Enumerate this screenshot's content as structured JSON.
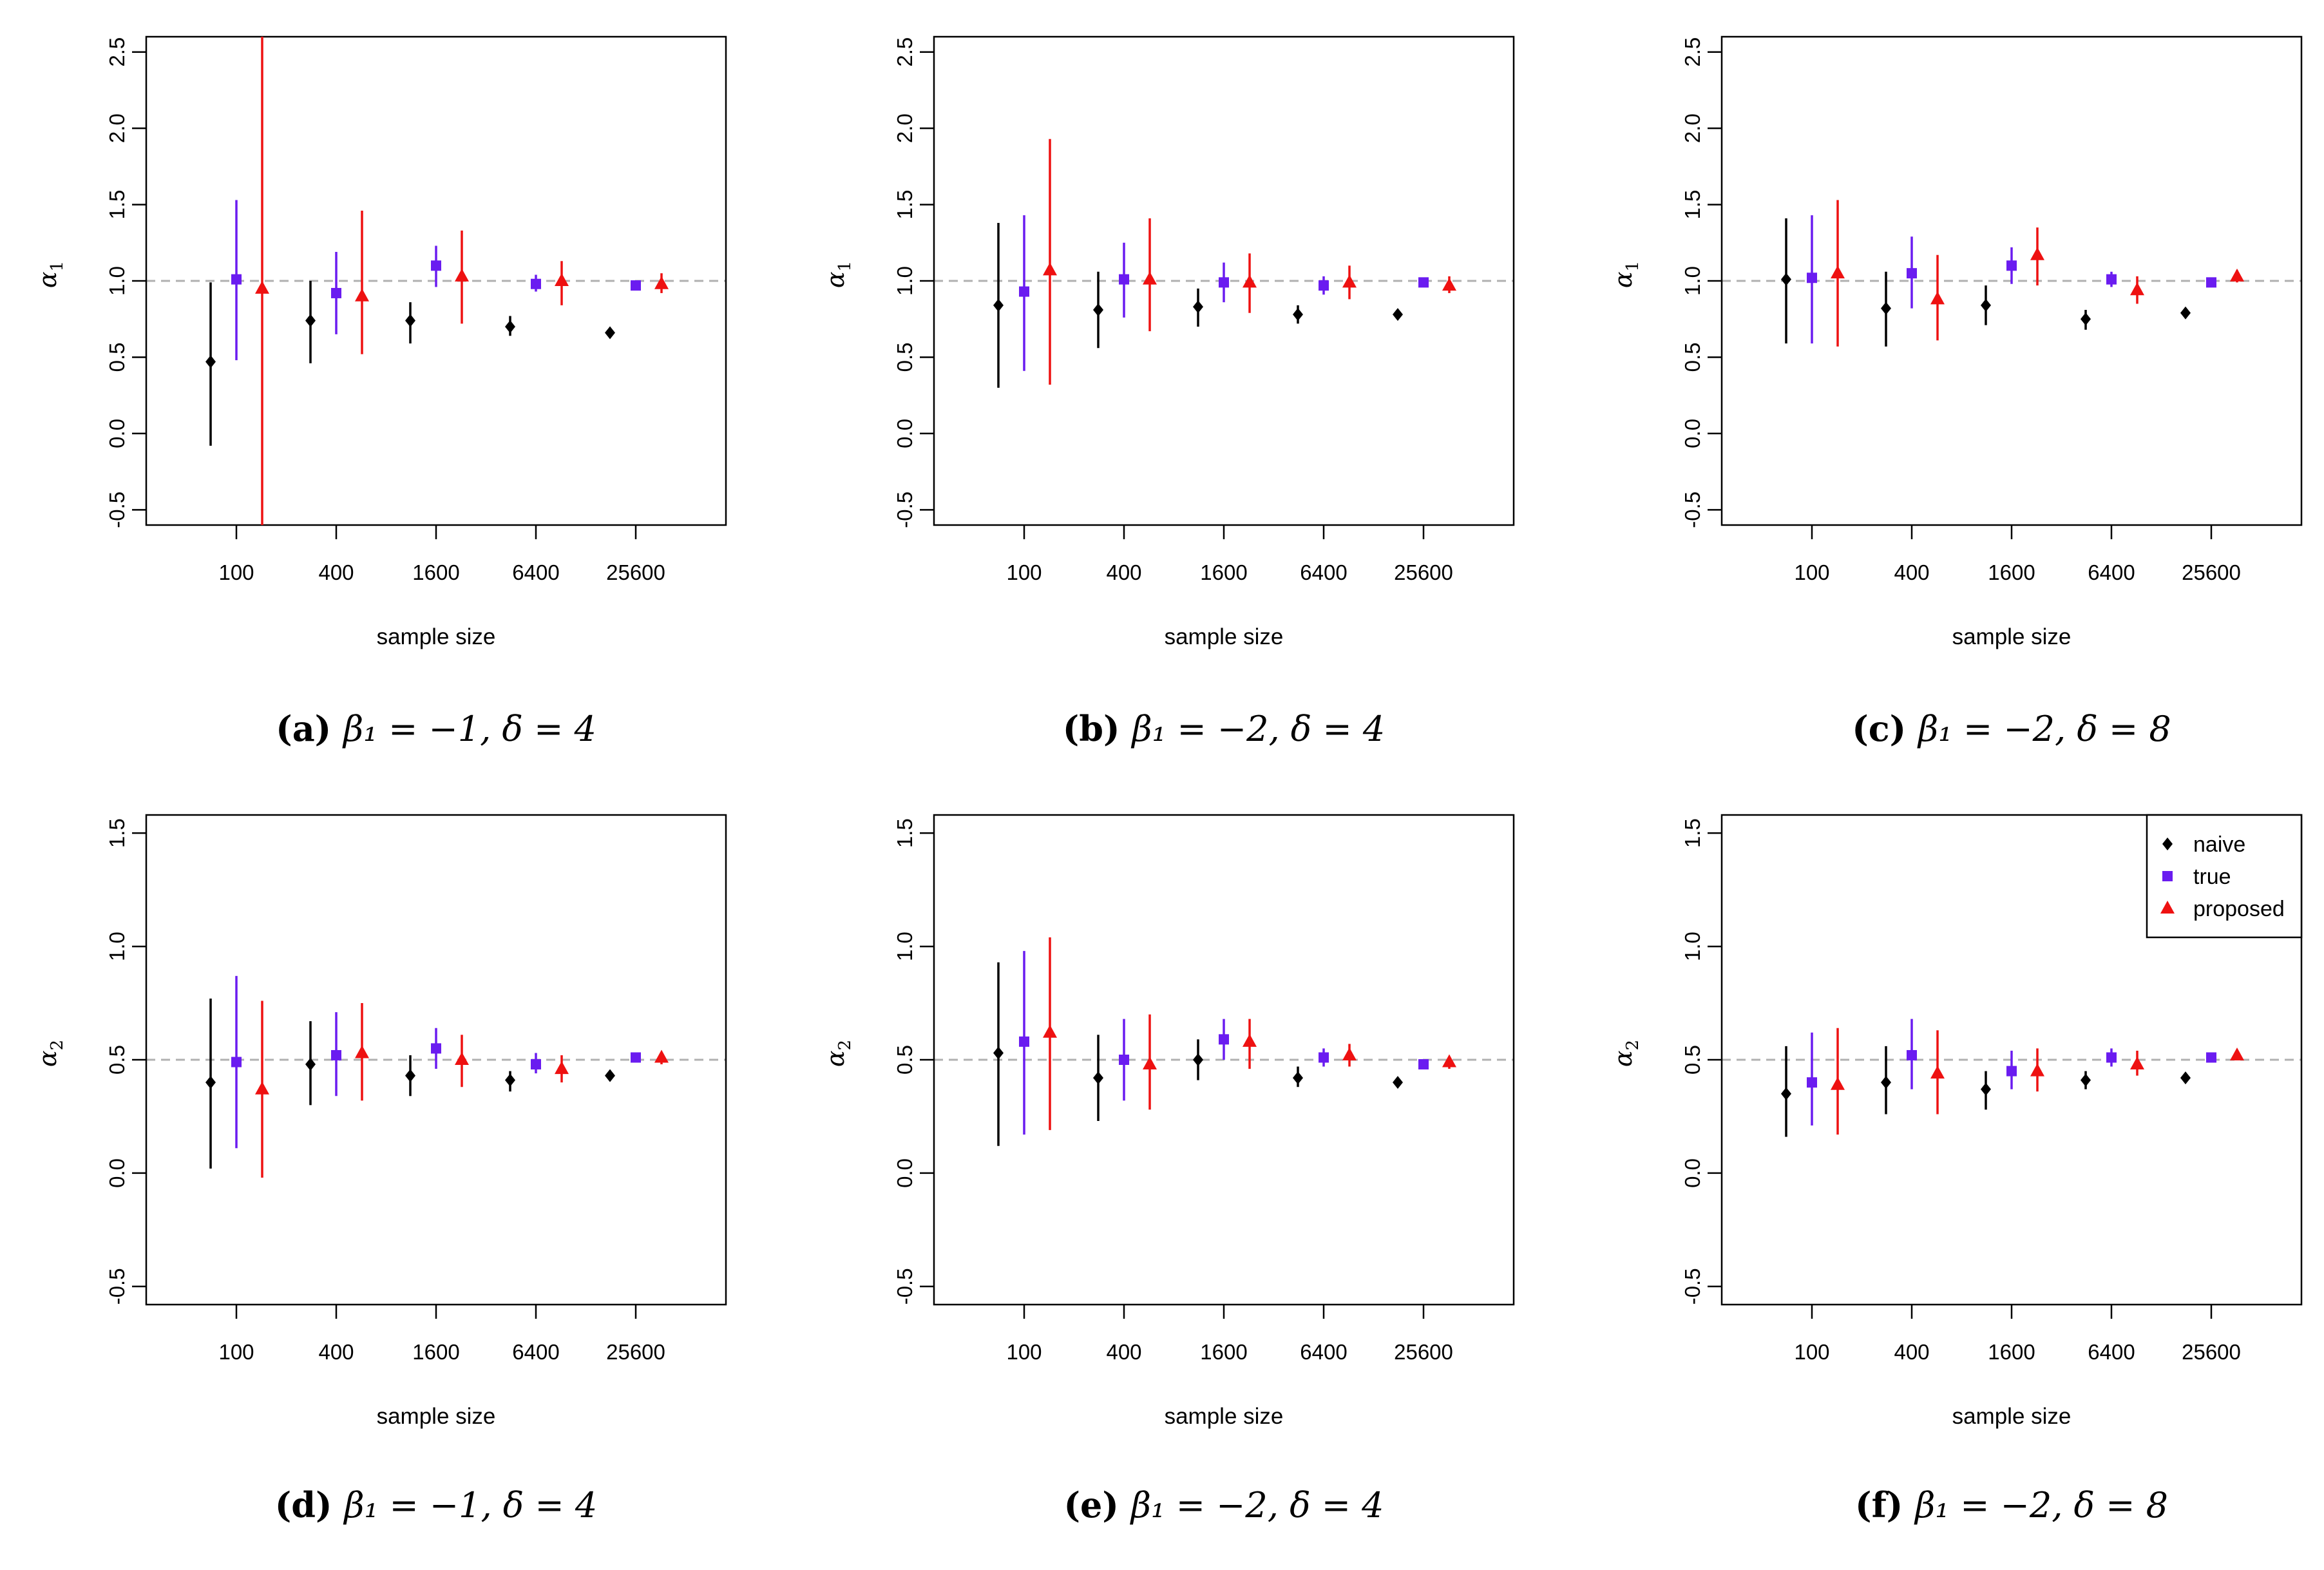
{
  "chart_data": [
    {
      "type": "scatter",
      "panel": "a",
      "caption": {
        "label": "(a)",
        "text": "β₁ = −1, δ = 4"
      },
      "ylabel": "α",
      "ylabel_sub": "1",
      "xlabel": "sample size",
      "categories": [
        "100",
        "400",
        "1600",
        "6400",
        "25600"
      ],
      "ylim": [
        -0.6,
        2.6
      ],
      "yticks": [
        -0.5,
        0.0,
        0.5,
        1.0,
        1.5,
        2.0,
        2.5
      ],
      "ytick_labels": [
        "-0.5",
        "0.0",
        "0.5",
        "1.0",
        "1.5",
        "2.0",
        "2.5"
      ],
      "reference_line": 1.0,
      "series": [
        {
          "name": "naive",
          "points": [
            {
              "est": 0.47,
              "lo": -0.08,
              "hi": 0.99
            },
            {
              "est": 0.74,
              "lo": 0.46,
              "hi": 1.0
            },
            {
              "est": 0.74,
              "lo": 0.59,
              "hi": 0.86
            },
            {
              "est": 0.7,
              "lo": 0.64,
              "hi": 0.77
            },
            {
              "est": 0.66,
              "lo": 0.63,
              "hi": 0.69
            }
          ]
        },
        {
          "name": "true",
          "points": [
            {
              "est": 1.01,
              "lo": 0.48,
              "hi": 1.53
            },
            {
              "est": 0.92,
              "lo": 0.65,
              "hi": 1.19
            },
            {
              "est": 1.1,
              "lo": 0.96,
              "hi": 1.23
            },
            {
              "est": 0.98,
              "lo": 0.93,
              "hi": 1.04
            },
            {
              "est": 0.97,
              "lo": 0.95,
              "hi": 1.0
            }
          ]
        },
        {
          "name": "proposed",
          "points": [
            {
              "est": 0.95,
              "lo": -0.64,
              "hi": 2.6
            },
            {
              "est": 0.9,
              "lo": 0.52,
              "hi": 1.46
            },
            {
              "est": 1.03,
              "lo": 0.72,
              "hi": 1.33
            },
            {
              "est": 1.0,
              "lo": 0.84,
              "hi": 1.13
            },
            {
              "est": 0.98,
              "lo": 0.92,
              "hi": 1.05
            }
          ]
        }
      ]
    },
    {
      "type": "scatter",
      "panel": "b",
      "caption": {
        "label": "(b)",
        "text": "β₁ = −2, δ = 4"
      },
      "ylabel": "α",
      "ylabel_sub": "1",
      "xlabel": "sample size",
      "categories": [
        "100",
        "400",
        "1600",
        "6400",
        "25600"
      ],
      "ylim": [
        -0.6,
        2.6
      ],
      "yticks": [
        -0.5,
        0.0,
        0.5,
        1.0,
        1.5,
        2.0,
        2.5
      ],
      "ytick_labels": [
        "-0.5",
        "0.0",
        "0.5",
        "1.0",
        "1.5",
        "2.0",
        "2.5"
      ],
      "reference_line": 1.0,
      "series": [
        {
          "name": "naive",
          "points": [
            {
              "est": 0.84,
              "lo": 0.3,
              "hi": 1.38
            },
            {
              "est": 0.81,
              "lo": 0.56,
              "hi": 1.06
            },
            {
              "est": 0.83,
              "lo": 0.7,
              "hi": 0.95
            },
            {
              "est": 0.78,
              "lo": 0.72,
              "hi": 0.84
            },
            {
              "est": 0.78,
              "lo": 0.75,
              "hi": 0.81
            }
          ]
        },
        {
          "name": "true",
          "points": [
            {
              "est": 0.93,
              "lo": 0.41,
              "hi": 1.43
            },
            {
              "est": 1.01,
              "lo": 0.76,
              "hi": 1.25
            },
            {
              "est": 0.99,
              "lo": 0.86,
              "hi": 1.12
            },
            {
              "est": 0.97,
              "lo": 0.91,
              "hi": 1.03
            },
            {
              "est": 0.99,
              "lo": 0.96,
              "hi": 1.02
            }
          ]
        },
        {
          "name": "proposed",
          "points": [
            {
              "est": 1.07,
              "lo": 0.32,
              "hi": 1.93
            },
            {
              "est": 1.01,
              "lo": 0.67,
              "hi": 1.41
            },
            {
              "est": 0.99,
              "lo": 0.79,
              "hi": 1.18
            },
            {
              "est": 0.99,
              "lo": 0.88,
              "hi": 1.1
            },
            {
              "est": 0.97,
              "lo": 0.92,
              "hi": 1.03
            }
          ]
        }
      ]
    },
    {
      "type": "scatter",
      "panel": "c",
      "caption": {
        "label": "(c)",
        "text": "β₁ = −2, δ = 8"
      },
      "ylabel": "α",
      "ylabel_sub": "1",
      "xlabel": "sample size",
      "categories": [
        "100",
        "400",
        "1600",
        "6400",
        "25600"
      ],
      "ylim": [
        -0.6,
        2.6
      ],
      "yticks": [
        -0.5,
        0.0,
        0.5,
        1.0,
        1.5,
        2.0,
        2.5
      ],
      "ytick_labels": [
        "-0.5",
        "0.0",
        "0.5",
        "1.0",
        "1.5",
        "2.0",
        "2.5"
      ],
      "reference_line": 1.0,
      "series": [
        {
          "name": "naive",
          "points": [
            {
              "est": 1.01,
              "lo": 0.59,
              "hi": 1.41
            },
            {
              "est": 0.82,
              "lo": 0.57,
              "hi": 1.06
            },
            {
              "est": 0.84,
              "lo": 0.71,
              "hi": 0.97
            },
            {
              "est": 0.75,
              "lo": 0.68,
              "hi": 0.81
            },
            {
              "est": 0.79,
              "lo": 0.77,
              "hi": 0.82
            }
          ]
        },
        {
          "name": "true",
          "points": [
            {
              "est": 1.02,
              "lo": 0.59,
              "hi": 1.43
            },
            {
              "est": 1.05,
              "lo": 0.82,
              "hi": 1.29
            },
            {
              "est": 1.1,
              "lo": 0.98,
              "hi": 1.22
            },
            {
              "est": 1.01,
              "lo": 0.96,
              "hi": 1.06
            },
            {
              "est": 0.99,
              "lo": 0.97,
              "hi": 1.02
            }
          ]
        },
        {
          "name": "proposed",
          "points": [
            {
              "est": 1.05,
              "lo": 0.57,
              "hi": 1.53
            },
            {
              "est": 0.88,
              "lo": 0.61,
              "hi": 1.17
            },
            {
              "est": 1.17,
              "lo": 0.97,
              "hi": 1.35
            },
            {
              "est": 0.94,
              "lo": 0.85,
              "hi": 1.03
            },
            {
              "est": 1.03,
              "lo": 0.99,
              "hi": 1.07
            }
          ]
        }
      ]
    },
    {
      "type": "scatter",
      "panel": "d",
      "caption": {
        "label": "(d)",
        "text": "β₁ = −1, δ = 4"
      },
      "ylabel": "α",
      "ylabel_sub": "2",
      "xlabel": "sample size",
      "categories": [
        "100",
        "400",
        "1600",
        "6400",
        "25600"
      ],
      "ylim": [
        -0.58,
        1.58
      ],
      "yticks": [
        -0.5,
        0.0,
        0.5,
        1.0,
        1.5
      ],
      "ytick_labels": [
        "-0.5",
        "0.0",
        "0.5",
        "1.0",
        "1.5"
      ],
      "reference_line": 0.5,
      "series": [
        {
          "name": "naive",
          "points": [
            {
              "est": 0.4,
              "lo": 0.02,
              "hi": 0.77
            },
            {
              "est": 0.48,
              "lo": 0.3,
              "hi": 0.67
            },
            {
              "est": 0.43,
              "lo": 0.34,
              "hi": 0.52
            },
            {
              "est": 0.41,
              "lo": 0.36,
              "hi": 0.45
            },
            {
              "est": 0.43,
              "lo": 0.41,
              "hi": 0.45
            }
          ]
        },
        {
          "name": "true",
          "points": [
            {
              "est": 0.49,
              "lo": 0.11,
              "hi": 0.87
            },
            {
              "est": 0.52,
              "lo": 0.34,
              "hi": 0.71
            },
            {
              "est": 0.55,
              "lo": 0.46,
              "hi": 0.64
            },
            {
              "est": 0.48,
              "lo": 0.44,
              "hi": 0.53
            },
            {
              "est": 0.51,
              "lo": 0.49,
              "hi": 0.53
            }
          ]
        },
        {
          "name": "proposed",
          "points": [
            {
              "est": 0.37,
              "lo": -0.02,
              "hi": 0.76
            },
            {
              "est": 0.53,
              "lo": 0.32,
              "hi": 0.75
            },
            {
              "est": 0.5,
              "lo": 0.38,
              "hi": 0.61
            },
            {
              "est": 0.46,
              "lo": 0.4,
              "hi": 0.52
            },
            {
              "est": 0.51,
              "lo": 0.48,
              "hi": 0.53
            }
          ]
        }
      ]
    },
    {
      "type": "scatter",
      "panel": "e",
      "caption": {
        "label": "(e)",
        "text": "β₁ = −2, δ = 4"
      },
      "ylabel": "α",
      "ylabel_sub": "2",
      "xlabel": "sample size",
      "categories": [
        "100",
        "400",
        "1600",
        "6400",
        "25600"
      ],
      "ylim": [
        -0.58,
        1.58
      ],
      "yticks": [
        -0.5,
        0.0,
        0.5,
        1.0,
        1.5
      ],
      "ytick_labels": [
        "-0.5",
        "0.0",
        "0.5",
        "1.0",
        "1.5"
      ],
      "reference_line": 0.5,
      "series": [
        {
          "name": "naive",
          "points": [
            {
              "est": 0.53,
              "lo": 0.12,
              "hi": 0.93
            },
            {
              "est": 0.42,
              "lo": 0.23,
              "hi": 0.61
            },
            {
              "est": 0.5,
              "lo": 0.41,
              "hi": 0.59
            },
            {
              "est": 0.42,
              "lo": 0.38,
              "hi": 0.47
            },
            {
              "est": 0.4,
              "lo": 0.38,
              "hi": 0.42
            }
          ]
        },
        {
          "name": "true",
          "points": [
            {
              "est": 0.58,
              "lo": 0.17,
              "hi": 0.98
            },
            {
              "est": 0.5,
              "lo": 0.32,
              "hi": 0.68
            },
            {
              "est": 0.59,
              "lo": 0.5,
              "hi": 0.68
            },
            {
              "est": 0.51,
              "lo": 0.47,
              "hi": 0.55
            },
            {
              "est": 0.48,
              "lo": 0.47,
              "hi": 0.5
            }
          ]
        },
        {
          "name": "proposed",
          "points": [
            {
              "est": 0.62,
              "lo": 0.19,
              "hi": 1.04
            },
            {
              "est": 0.48,
              "lo": 0.28,
              "hi": 0.7
            },
            {
              "est": 0.58,
              "lo": 0.46,
              "hi": 0.68
            },
            {
              "est": 0.52,
              "lo": 0.47,
              "hi": 0.57
            },
            {
              "est": 0.49,
              "lo": 0.46,
              "hi": 0.51
            }
          ]
        }
      ]
    },
    {
      "type": "scatter",
      "panel": "f",
      "caption": {
        "label": "(f)",
        "text": "β₁ = −2, δ = 8"
      },
      "ylabel": "α",
      "ylabel_sub": "2",
      "xlabel": "sample size",
      "categories": [
        "100",
        "400",
        "1600",
        "6400",
        "25600"
      ],
      "ylim": [
        -0.58,
        1.58
      ],
      "yticks": [
        -0.5,
        0.0,
        0.5,
        1.0,
        1.5
      ],
      "ytick_labels": [
        "-0.5",
        "0.0",
        "0.5",
        "1.0",
        "1.5"
      ],
      "reference_line": 0.5,
      "legend": {
        "position": "top-right",
        "entries": [
          "naive",
          "true",
          "proposed"
        ]
      },
      "series": [
        {
          "name": "naive",
          "points": [
            {
              "est": 0.35,
              "lo": 0.16,
              "hi": 0.56
            },
            {
              "est": 0.4,
              "lo": 0.26,
              "hi": 0.56
            },
            {
              "est": 0.37,
              "lo": 0.28,
              "hi": 0.45
            },
            {
              "est": 0.41,
              "lo": 0.37,
              "hi": 0.45
            },
            {
              "est": 0.42,
              "lo": 0.4,
              "hi": 0.44
            }
          ]
        },
        {
          "name": "true",
          "points": [
            {
              "est": 0.4,
              "lo": 0.21,
              "hi": 0.62
            },
            {
              "est": 0.52,
              "lo": 0.37,
              "hi": 0.68
            },
            {
              "est": 0.45,
              "lo": 0.37,
              "hi": 0.54
            },
            {
              "est": 0.51,
              "lo": 0.47,
              "hi": 0.55
            },
            {
              "est": 0.51,
              "lo": 0.49,
              "hi": 0.52
            }
          ]
        },
        {
          "name": "proposed",
          "points": [
            {
              "est": 0.39,
              "lo": 0.17,
              "hi": 0.64
            },
            {
              "est": 0.44,
              "lo": 0.26,
              "hi": 0.63
            },
            {
              "est": 0.45,
              "lo": 0.36,
              "hi": 0.55
            },
            {
              "est": 0.48,
              "lo": 0.43,
              "hi": 0.54
            },
            {
              "est": 0.52,
              "lo": 0.5,
              "hi": 0.54
            }
          ]
        }
      ]
    }
  ],
  "colors": {
    "naive": "#000000",
    "true": "#6a1cf0",
    "proposed": "#ee1111",
    "reference_line": "#b0b0b0"
  },
  "legend_labels": {
    "naive": "naive",
    "true": "true",
    "proposed": "proposed"
  }
}
